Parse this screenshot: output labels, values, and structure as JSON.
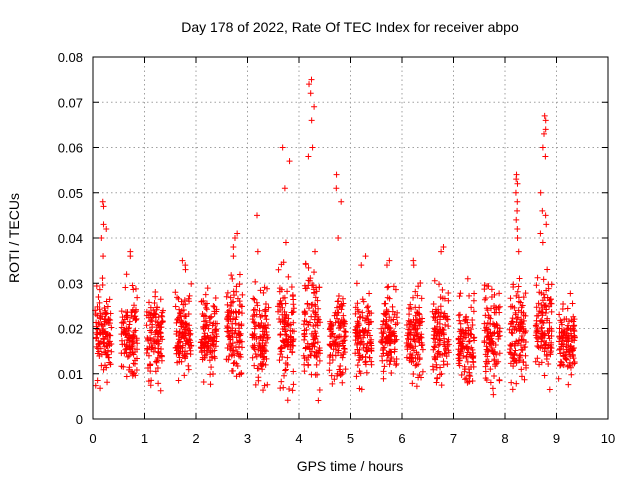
{
  "chart_data": {
    "type": "scatter",
    "title": "Day 178 of 2022, Rate Of TEC Index for receiver abpo",
    "xlabel": "GPS time / hours",
    "ylabel": "ROTI / TECUs",
    "xlim": [
      0,
      10
    ],
    "ylim": [
      0,
      0.08
    ],
    "x_ticks": [
      "0",
      "1",
      "2",
      "3",
      "4",
      "5",
      "6",
      "7",
      "8",
      "9",
      "10"
    ],
    "y_ticks": [
      "0",
      "0.01",
      "0.02",
      "0.03",
      "0.04",
      "0.05",
      "0.06",
      "0.07",
      "0.08"
    ],
    "grid": true,
    "marker": "+",
    "color": "#ff0000",
    "clusters": [
      {
        "x": 0.2,
        "y_min": 0.005,
        "y_max": 0.032,
        "outliers": [
          0.04,
          0.042,
          0.043,
          0.047,
          0.048,
          0.036
        ]
      },
      {
        "x": 0.7,
        "y_min": 0.006,
        "y_max": 0.03,
        "outliers": [
          0.036,
          0.037,
          0.032
        ]
      },
      {
        "x": 1.2,
        "y_min": 0.006,
        "y_max": 0.03,
        "outliers": []
      },
      {
        "x": 1.75,
        "y_min": 0.007,
        "y_max": 0.03,
        "outliers": [
          0.033,
          0.034,
          0.035
        ]
      },
      {
        "x": 2.25,
        "y_min": 0.007,
        "y_max": 0.03,
        "outliers": []
      },
      {
        "x": 2.75,
        "y_min": 0.007,
        "y_max": 0.033,
        "outliers": [
          0.038,
          0.04,
          0.041,
          0.036
        ]
      },
      {
        "x": 3.25,
        "y_min": 0.005,
        "y_max": 0.032,
        "outliers": [
          0.045,
          0.037
        ]
      },
      {
        "x": 3.75,
        "y_min": 0.004,
        "y_max": 0.035,
        "outliers": [
          0.051,
          0.057,
          0.06,
          0.039
        ]
      },
      {
        "x": 4.25,
        "y_min": 0.004,
        "y_max": 0.035,
        "outliers": [
          0.058,
          0.06,
          0.066,
          0.069,
          0.072,
          0.074,
          0.075,
          0.037
        ]
      },
      {
        "x": 4.75,
        "y_min": 0.006,
        "y_max": 0.03,
        "outliers": [
          0.04,
          0.048,
          0.051,
          0.054
        ]
      },
      {
        "x": 5.25,
        "y_min": 0.006,
        "y_max": 0.03,
        "outliers": [
          0.034,
          0.036
        ]
      },
      {
        "x": 5.75,
        "y_min": 0.007,
        "y_max": 0.03,
        "outliers": [
          0.034,
          0.035
        ]
      },
      {
        "x": 6.25,
        "y_min": 0.006,
        "y_max": 0.031,
        "outliers": [
          0.034,
          0.035
        ]
      },
      {
        "x": 6.75,
        "y_min": 0.006,
        "y_max": 0.031,
        "outliers": [
          0.037,
          0.038
        ]
      },
      {
        "x": 7.25,
        "y_min": 0.006,
        "y_max": 0.028,
        "outliers": [
          0.031
        ]
      },
      {
        "x": 7.75,
        "y_min": 0.005,
        "y_max": 0.031,
        "outliers": []
      },
      {
        "x": 8.25,
        "y_min": 0.006,
        "y_max": 0.033,
        "outliers": [
          0.04,
          0.042,
          0.044,
          0.046,
          0.048,
          0.05,
          0.052,
          0.053,
          0.054,
          0.037
        ]
      },
      {
        "x": 8.75,
        "y_min": 0.005,
        "y_max": 0.035,
        "outliers": [
          0.039,
          0.041,
          0.043,
          0.045,
          0.046,
          0.05,
          0.058,
          0.06,
          0.063,
          0.064,
          0.066,
          0.067
        ]
      },
      {
        "x": 9.2,
        "y_min": 0.006,
        "y_max": 0.028,
        "outliers": []
      }
    ]
  }
}
